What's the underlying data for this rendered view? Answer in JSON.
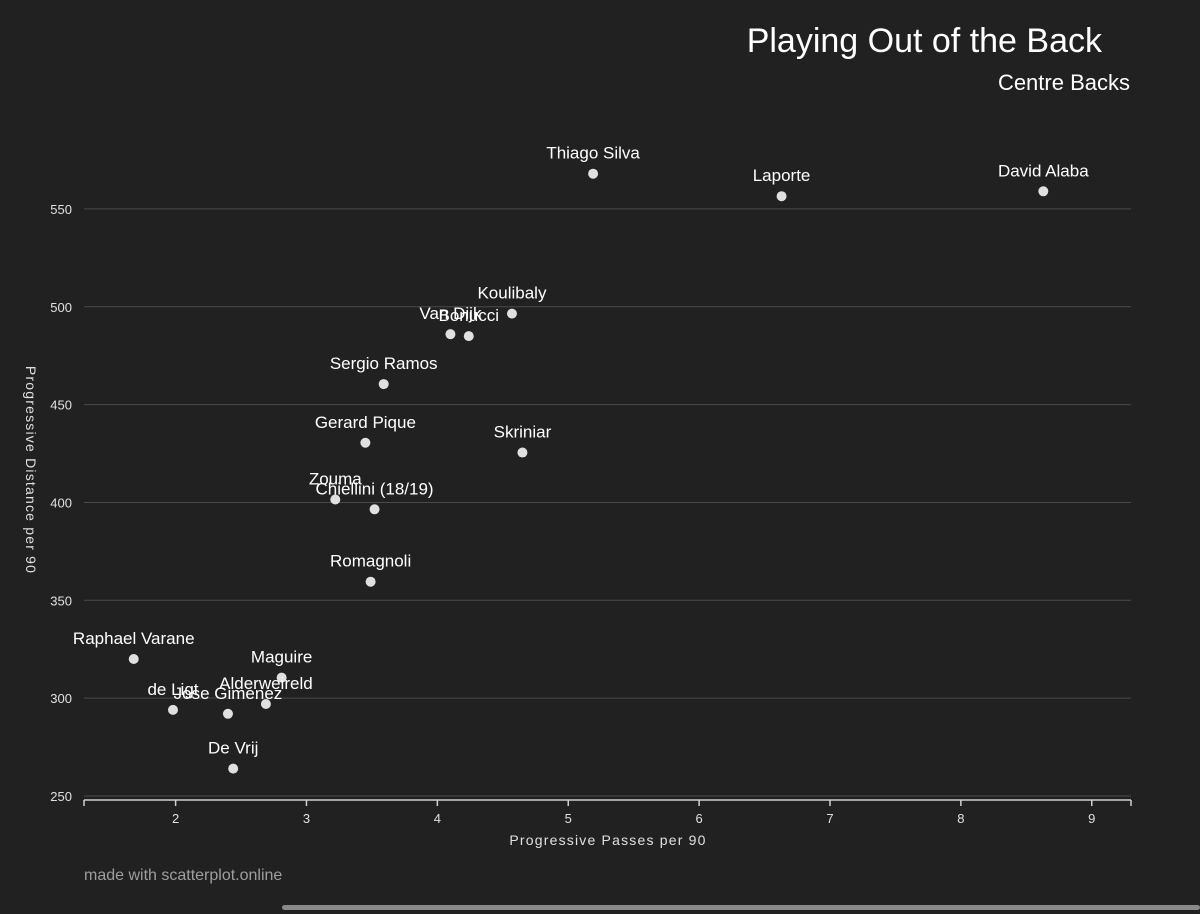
{
  "chart_data": {
    "type": "scatter",
    "title": "Playing Out of the Back",
    "subtitle": "Centre Backs",
    "xlabel": "Progressive Passes per 90",
    "ylabel": "Progressive Distance per 90",
    "xlim": [
      1.3,
      9.3
    ],
    "ylim": [
      250,
      575
    ],
    "xticks": [
      2,
      3,
      4,
      5,
      6,
      7,
      8,
      9
    ],
    "yticks": [
      250,
      300,
      350,
      400,
      450,
      500,
      550
    ],
    "grid": "horizontal",
    "colors": {
      "background": "#212121",
      "point": "#e0e0e0",
      "text": "#ffffff",
      "grid": "#4a4a4a"
    },
    "points": [
      {
        "label": "Thiago Silva",
        "x": 5.19,
        "y": 568
      },
      {
        "label": "Laporte",
        "x": 6.63,
        "y": 556.5
      },
      {
        "label": "David Alaba",
        "x": 8.63,
        "y": 559
      },
      {
        "label": "Koulibaly",
        "x": 4.57,
        "y": 496.5
      },
      {
        "label": "Van Dijk",
        "x": 4.1,
        "y": 486
      },
      {
        "label": "Bonucci",
        "x": 4.24,
        "y": 485
      },
      {
        "label": "Sergio Ramos",
        "x": 3.59,
        "y": 460.5
      },
      {
        "label": "Gerard Pique",
        "x": 3.45,
        "y": 430.5
      },
      {
        "label": "Skriniar",
        "x": 4.65,
        "y": 425.5
      },
      {
        "label": "Zouma",
        "x": 3.22,
        "y": 401.5
      },
      {
        "label": "Chiellini (18/19)",
        "x": 3.52,
        "y": 396.5
      },
      {
        "label": "Romagnoli",
        "x": 3.49,
        "y": 359.5
      },
      {
        "label": "Raphael Varane",
        "x": 1.68,
        "y": 320
      },
      {
        "label": "Maguire",
        "x": 2.81,
        "y": 310.5
      },
      {
        "label": "Alderweireld",
        "x": 2.69,
        "y": 297
      },
      {
        "label": "de Ligt",
        "x": 1.98,
        "y": 294
      },
      {
        "label": "Jose Gimenez",
        "x": 2.4,
        "y": 292
      },
      {
        "label": "De Vrij",
        "x": 2.44,
        "y": 264
      }
    ]
  },
  "footer": "made with scatterplot.online"
}
